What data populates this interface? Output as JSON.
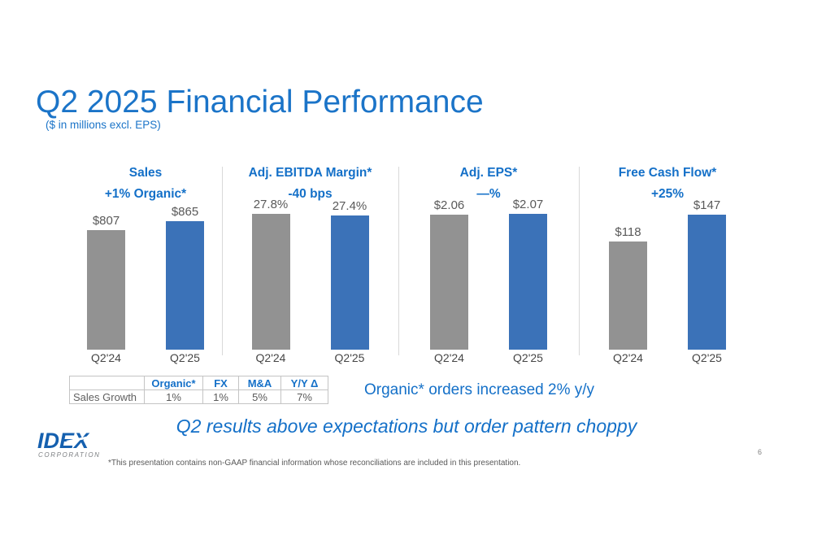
{
  "slide": {
    "title": "Q2 2025 Financial Performance",
    "subtitle": "($ in millions excl. EPS)",
    "orders_note": "Organic* orders increased 2% y/y",
    "summary": "Q2 results above expectations but order pattern choppy",
    "footnote": "*This presentation contains non-GAAP financial information whose reconciliations are included in this presentation.",
    "page_number": "6",
    "logo": {
      "name": "IDEX",
      "sub": "CORPORATION"
    }
  },
  "colors": {
    "accent_blue": "#1470C8",
    "title_blue": "#1B74C8",
    "bar_gray": "#929292",
    "bar_blue": "#3B72B8",
    "value_label_gray": "#595959",
    "divider_gray": "#D9D9D9",
    "logo_blue": "#1560AF",
    "logo_sub_gray": "#7E8184"
  },
  "chart_data": [
    {
      "type": "bar",
      "title": "Sales",
      "subtitle": "+1% Organic*",
      "categories": [
        "Q2'24",
        "Q2'25"
      ],
      "values": [
        807,
        865
      ],
      "labels": [
        "$807",
        "$865"
      ],
      "colors": [
        "#929292",
        "#3B72B8"
      ]
    },
    {
      "type": "bar",
      "title": "Adj. EBITDA Margin*",
      "subtitle": "-40 bps",
      "categories": [
        "Q2'24",
        "Q2'25"
      ],
      "values": [
        27.8,
        27.4
      ],
      "labels": [
        "27.8%",
        "27.4%"
      ],
      "colors": [
        "#929292",
        "#3B72B8"
      ]
    },
    {
      "type": "bar",
      "title": "Adj. EPS*",
      "subtitle": "—%",
      "categories": [
        "Q2'24",
        "Q2'25"
      ],
      "values": [
        2.06,
        2.07
      ],
      "labels": [
        "$2.06",
        "$2.07"
      ],
      "colors": [
        "#929292",
        "#3B72B8"
      ]
    },
    {
      "type": "bar",
      "title": "Free Cash Flow*",
      "subtitle": "+25%",
      "categories": [
        "Q2'24",
        "Q2'25"
      ],
      "values": [
        118,
        147
      ],
      "labels": [
        "$118",
        "$147"
      ],
      "colors": [
        "#929292",
        "#3B72B8"
      ]
    }
  ],
  "table": {
    "headers": [
      "",
      "Organic*",
      "FX",
      "M&A",
      "Y/Y Δ"
    ],
    "rows": [
      [
        "Sales Growth",
        "1%",
        "1%",
        "5%",
        "7%"
      ]
    ]
  }
}
